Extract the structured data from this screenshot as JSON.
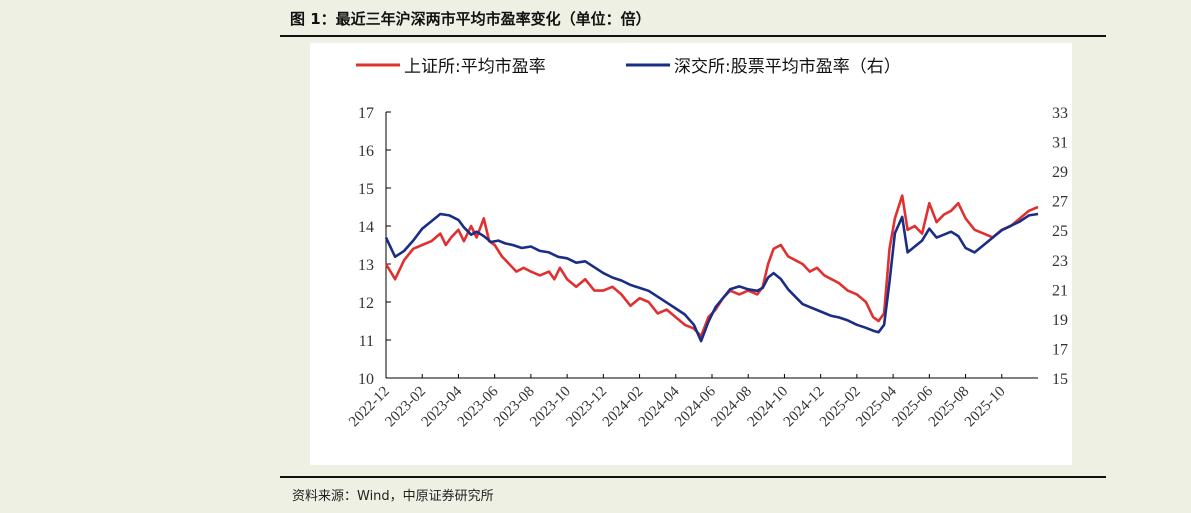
{
  "figure": {
    "title": "图 1：最近三年沪深两市平均市盈率变化（单位：倍）",
    "source": "资料来源：Wind，中原证券研究所"
  },
  "chart_data": {
    "type": "line",
    "title": "最近三年沪深两市平均市盈率变化（单位：倍）",
    "x_labels": [
      "2022-12",
      "2023-02",
      "2023-04",
      "2023-06",
      "2023-08",
      "2023-10",
      "2023-12",
      "2024-02",
      "2024-04",
      "2024-06",
      "2024-08",
      "2024-10",
      "2024-12",
      "2025-02",
      "2025-04",
      "2025-06",
      "2025-08",
      "2025-10"
    ],
    "left_axis": {
      "min": 10,
      "max": 17,
      "ticks": [
        "10",
        "11",
        "12",
        "13",
        "14",
        "15",
        "16",
        "17"
      ]
    },
    "right_axis": {
      "min": 15,
      "max": 33,
      "ticks": [
        "15",
        "17",
        "19",
        "21",
        "23",
        "25",
        "27",
        "29",
        "31",
        "33"
      ]
    },
    "x_range": [
      0,
      36
    ],
    "series": [
      {
        "name": "上证所:平均市盈率",
        "axis": "left",
        "color": "#e03030",
        "points": [
          [
            0,
            13.0
          ],
          [
            0.5,
            12.6
          ],
          [
            1,
            13.1
          ],
          [
            1.5,
            13.4
          ],
          [
            2,
            13.5
          ],
          [
            2.5,
            13.6
          ],
          [
            3,
            13.8
          ],
          [
            3.3,
            13.5
          ],
          [
            3.6,
            13.7
          ],
          [
            4,
            13.9
          ],
          [
            4.3,
            13.6
          ],
          [
            4.7,
            14.0
          ],
          [
            5,
            13.7
          ],
          [
            5.4,
            14.2
          ],
          [
            5.7,
            13.6
          ],
          [
            6,
            13.5
          ],
          [
            6.4,
            13.2
          ],
          [
            6.8,
            13.0
          ],
          [
            7.2,
            12.8
          ],
          [
            7.6,
            12.9
          ],
          [
            8,
            12.8
          ],
          [
            8.5,
            12.7
          ],
          [
            9,
            12.8
          ],
          [
            9.3,
            12.6
          ],
          [
            9.6,
            12.9
          ],
          [
            10,
            12.6
          ],
          [
            10.5,
            12.4
          ],
          [
            11,
            12.6
          ],
          [
            11.5,
            12.3
          ],
          [
            12,
            12.3
          ],
          [
            12.5,
            12.4
          ],
          [
            13,
            12.2
          ],
          [
            13.5,
            11.9
          ],
          [
            14,
            12.1
          ],
          [
            14.5,
            12.0
          ],
          [
            15,
            11.7
          ],
          [
            15.5,
            11.8
          ],
          [
            16,
            11.6
          ],
          [
            16.5,
            11.4
          ],
          [
            17,
            11.3
          ],
          [
            17.4,
            11.1
          ],
          [
            17.8,
            11.6
          ],
          [
            18.2,
            11.8
          ],
          [
            18.6,
            12.1
          ],
          [
            19,
            12.3
          ],
          [
            19.5,
            12.2
          ],
          [
            20,
            12.3
          ],
          [
            20.5,
            12.2
          ],
          [
            20.8,
            12.4
          ],
          [
            21.1,
            13.0
          ],
          [
            21.4,
            13.4
          ],
          [
            21.8,
            13.5
          ],
          [
            22.2,
            13.2
          ],
          [
            22.6,
            13.1
          ],
          [
            23,
            13.0
          ],
          [
            23.4,
            12.8
          ],
          [
            23.8,
            12.9
          ],
          [
            24.2,
            12.7
          ],
          [
            24.6,
            12.6
          ],
          [
            25,
            12.5
          ],
          [
            25.5,
            12.3
          ],
          [
            26,
            12.2
          ],
          [
            26.5,
            12.0
          ],
          [
            26.9,
            11.6
          ],
          [
            27.2,
            11.5
          ],
          [
            27.5,
            11.7
          ],
          [
            27.8,
            13.4
          ],
          [
            28.1,
            14.2
          ],
          [
            28.5,
            14.8
          ],
          [
            28.8,
            13.9
          ],
          [
            29.2,
            14.0
          ],
          [
            29.6,
            13.8
          ],
          [
            30,
            14.6
          ],
          [
            30.4,
            14.1
          ],
          [
            30.8,
            14.3
          ],
          [
            31.2,
            14.4
          ],
          [
            31.6,
            14.6
          ],
          [
            32,
            14.2
          ],
          [
            32.5,
            13.9
          ],
          [
            33,
            13.8
          ],
          [
            33.5,
            13.7
          ],
          [
            34,
            13.9
          ],
          [
            34.5,
            14.0
          ],
          [
            35,
            14.2
          ],
          [
            35.5,
            14.4
          ],
          [
            36,
            14.5
          ]
        ]
      },
      {
        "name": "深交所:股票平均市盈率（右）",
        "axis": "right",
        "color": "#1a2e85",
        "points": [
          [
            0,
            24.5
          ],
          [
            0.5,
            23.2
          ],
          [
            1,
            23.6
          ],
          [
            1.5,
            24.3
          ],
          [
            2,
            25.1
          ],
          [
            2.5,
            25.6
          ],
          [
            3,
            26.1
          ],
          [
            3.5,
            26.0
          ],
          [
            4,
            25.7
          ],
          [
            4.3,
            25.2
          ],
          [
            4.7,
            24.7
          ],
          [
            5,
            24.9
          ],
          [
            5.4,
            24.6
          ],
          [
            5.8,
            24.2
          ],
          [
            6.2,
            24.3
          ],
          [
            6.6,
            24.1
          ],
          [
            7,
            24.0
          ],
          [
            7.5,
            23.8
          ],
          [
            8,
            23.9
          ],
          [
            8.5,
            23.6
          ],
          [
            9,
            23.5
          ],
          [
            9.5,
            23.2
          ],
          [
            10,
            23.1
          ],
          [
            10.5,
            22.8
          ],
          [
            11,
            22.9
          ],
          [
            11.5,
            22.5
          ],
          [
            12,
            22.1
          ],
          [
            12.5,
            21.8
          ],
          [
            13,
            21.6
          ],
          [
            13.5,
            21.3
          ],
          [
            14,
            21.1
          ],
          [
            14.5,
            20.9
          ],
          [
            15,
            20.5
          ],
          [
            15.5,
            20.1
          ],
          [
            16,
            19.7
          ],
          [
            16.5,
            19.3
          ],
          [
            17,
            18.6
          ],
          [
            17.4,
            17.5
          ],
          [
            17.8,
            18.8
          ],
          [
            18.2,
            19.8
          ],
          [
            18.6,
            20.4
          ],
          [
            19,
            21.0
          ],
          [
            19.5,
            21.2
          ],
          [
            20,
            21.0
          ],
          [
            20.5,
            20.9
          ],
          [
            20.8,
            21.1
          ],
          [
            21.1,
            21.8
          ],
          [
            21.4,
            22.1
          ],
          [
            21.8,
            21.7
          ],
          [
            22.2,
            21.0
          ],
          [
            22.6,
            20.5
          ],
          [
            23,
            20.0
          ],
          [
            23.4,
            19.8
          ],
          [
            23.8,
            19.6
          ],
          [
            24.2,
            19.4
          ],
          [
            24.6,
            19.2
          ],
          [
            25,
            19.1
          ],
          [
            25.5,
            18.9
          ],
          [
            26,
            18.6
          ],
          [
            26.5,
            18.4
          ],
          [
            26.9,
            18.2
          ],
          [
            27.2,
            18.1
          ],
          [
            27.5,
            18.6
          ],
          [
            27.8,
            21.5
          ],
          [
            28.1,
            24.8
          ],
          [
            28.5,
            25.9
          ],
          [
            28.8,
            23.5
          ],
          [
            29.2,
            23.9
          ],
          [
            29.6,
            24.3
          ],
          [
            30,
            25.1
          ],
          [
            30.4,
            24.5
          ],
          [
            30.8,
            24.7
          ],
          [
            31.2,
            24.9
          ],
          [
            31.6,
            24.6
          ],
          [
            32,
            23.8
          ],
          [
            32.5,
            23.5
          ],
          [
            33,
            24.0
          ],
          [
            33.5,
            24.5
          ],
          [
            34,
            25.0
          ],
          [
            34.5,
            25.3
          ],
          [
            35,
            25.6
          ],
          [
            35.5,
            26.0
          ],
          [
            36,
            26.1
          ]
        ]
      }
    ]
  }
}
